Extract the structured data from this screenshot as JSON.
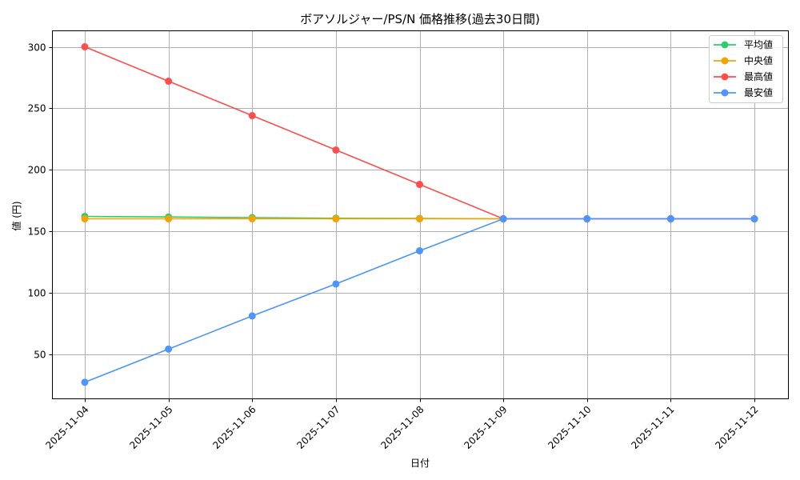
{
  "chart_data": {
    "type": "line",
    "title": "ボアソルジャー/PS/N 価格推移(過去30日間)",
    "xlabel": "日付",
    "ylabel": "値 (円)",
    "categories": [
      "2025-11-04",
      "2025-11-05",
      "2025-11-06",
      "2025-11-07",
      "2025-11-08",
      "2025-11-09",
      "2025-11-10",
      "2025-11-11",
      "2025-11-12"
    ],
    "series": [
      {
        "name": "平均値",
        "color": "#2ecc71",
        "values": [
          162,
          161.5,
          161,
          160.5,
          160.3,
          160,
          160,
          160,
          160
        ]
      },
      {
        "name": "中央値",
        "color": "#f5a300",
        "values": [
          160,
          160,
          160,
          160,
          160,
          160,
          160,
          160,
          160
        ]
      },
      {
        "name": "最高値",
        "color": "#ff4d4d",
        "values": [
          300,
          272,
          244,
          216,
          188,
          160,
          160,
          160,
          160
        ]
      },
      {
        "name": "最安値",
        "color": "#4d94ff",
        "values": [
          27,
          54,
          81,
          107,
          134,
          160,
          160,
          160,
          160
        ]
      }
    ],
    "yticks": [
      50,
      100,
      150,
      200,
      250,
      300
    ],
    "ylim": [
      13.5,
      313.5
    ],
    "grid": true,
    "legend_position": "upper right"
  }
}
